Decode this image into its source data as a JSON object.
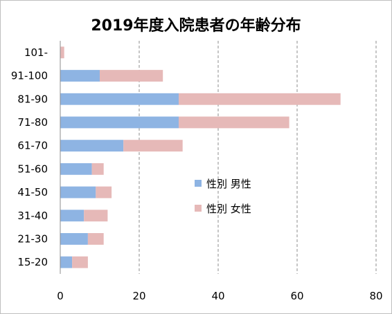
{
  "chart_data": {
    "type": "bar",
    "orientation": "horizontal",
    "stacked": true,
    "title": "2019年度入院患者の年齢分布",
    "categories": [
      "101-",
      "91-100",
      "81-90",
      "71-80",
      "61-70",
      "51-60",
      "41-50",
      "31-40",
      "21-30",
      "15-20"
    ],
    "series": [
      {
        "name": "性別 男性",
        "color": "#8eb4e3",
        "values": [
          0,
          10,
          30,
          30,
          16,
          8,
          9,
          6,
          7,
          3
        ]
      },
      {
        "name": "性別 女性",
        "color": "#e6b9b8",
        "values": [
          1,
          16,
          41,
          28,
          15,
          3,
          4,
          6,
          4,
          4
        ]
      }
    ],
    "xlim": [
      0,
      80
    ],
    "xticks": [
      0,
      20,
      40,
      60,
      80
    ],
    "grid": "vertical dashed",
    "legend": "center-right"
  }
}
